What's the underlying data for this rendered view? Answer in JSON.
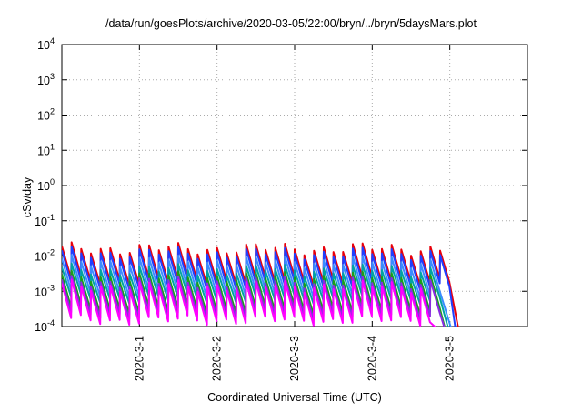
{
  "chart_data": {
    "type": "line",
    "title": "/data/run/goesPlots/archive/2020-03-05/22:00/bryn/../bryn/5daysMars.plot",
    "xlabel": "Coordinated Universal Time (UTC)",
    "ylabel": "cSv/day",
    "y_scale": "log",
    "ylim": [
      0.0001,
      10000
    ],
    "y_ticks": [
      {
        "base": "10",
        "exp": "-4"
      },
      {
        "base": "10",
        "exp": "-3"
      },
      {
        "base": "10",
        "exp": "-2"
      },
      {
        "base": "10",
        "exp": "-1"
      },
      {
        "base": "10",
        "exp": "0"
      },
      {
        "base": "10",
        "exp": "1"
      },
      {
        "base": "10",
        "exp": "2"
      },
      {
        "base": "10",
        "exp": "3"
      },
      {
        "base": "10",
        "exp": "4"
      }
    ],
    "xlim": [
      "2020-02-29 00:00",
      "2020-03-06 00:00"
    ],
    "x_ticks": [
      "2020-3-1",
      "2020-3-2",
      "2020-3-3",
      "2020-3-4",
      "2020-3-5"
    ],
    "grid": true,
    "series": [
      {
        "color": "#e8000b",
        "data_start": "2020-02-29 00:00",
        "data_end": "2020-03-04 22:00",
        "peak": 0.016,
        "trough": 0.002
      },
      {
        "color": "#1f3fff",
        "data_start": "2020-02-29 00:00",
        "data_end": "2020-03-04 21:00",
        "peak": 0.012,
        "trough": 0.0015
      },
      {
        "color": "#3a8cff",
        "data_start": "2020-02-29 00:00",
        "data_end": "2020-03-04 20:00",
        "peak": 0.007,
        "trough": 0.0009
      },
      {
        "color": "#00a3a3",
        "data_start": "2020-02-29 00:00",
        "data_end": "2020-03-04 19:00",
        "peak": 0.004,
        "trough": 0.0006
      },
      {
        "color": "#1a9e1a",
        "data_start": "2020-02-29 00:00",
        "data_end": "2020-03-04 18:00",
        "peak": 0.0025,
        "trough": 0.0003
      },
      {
        "color": "#8a2be2",
        "data_start": "2020-02-29 00:00",
        "data_end": "2020-03-04 18:00",
        "peak": 0.0018,
        "trough": 0.00022
      },
      {
        "color": "#ff00ff",
        "data_start": "2020-02-29 00:00",
        "data_end": "2020-03-04 17:00",
        "peak": 0.0014,
        "trough": 0.00015
      }
    ]
  }
}
